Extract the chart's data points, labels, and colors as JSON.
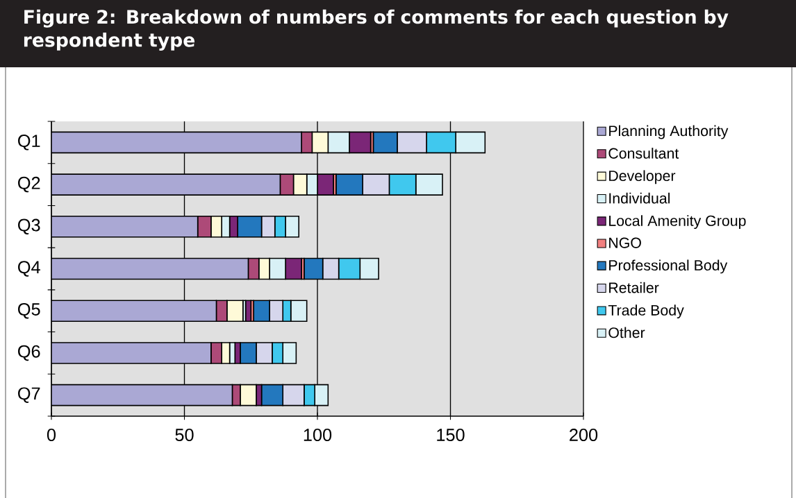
{
  "chart_data": {
    "type": "bar",
    "orientation": "horizontal",
    "stacked": true,
    "title": "Figure 2: Breakdown of numbers of comments for each question by respondent type",
    "categories": [
      "Q1",
      "Q2",
      "Q3",
      "Q4",
      "Q5",
      "Q6",
      "Q7"
    ],
    "series": [
      {
        "name": "Planning Authority",
        "color": "#aaa8d4",
        "values": [
          94,
          86,
          55,
          74,
          62,
          60,
          68
        ]
      },
      {
        "name": "Consultant",
        "color": "#ad4a78",
        "values": [
          4,
          5,
          5,
          4,
          4,
          4,
          3
        ]
      },
      {
        "name": "Developer",
        "color": "#fefad8",
        "values": [
          6,
          5,
          4,
          4,
          6,
          3,
          6
        ]
      },
      {
        "name": "Individual",
        "color": "#d8f1f6",
        "values": [
          8,
          4,
          3,
          6,
          1,
          2,
          0
        ]
      },
      {
        "name": "Local Amenity Group",
        "color": "#7b2677",
        "values": [
          8,
          6,
          3,
          6,
          2,
          2,
          2
        ]
      },
      {
        "name": "NGO",
        "color": "#f28080",
        "values": [
          1,
          1,
          0,
          1,
          1,
          0,
          0
        ]
      },
      {
        "name": "Professional Body",
        "color": "#2378be",
        "values": [
          9,
          10,
          9,
          7,
          6,
          6,
          8
        ]
      },
      {
        "name": "Retailer",
        "color": "#d6d6ec",
        "values": [
          11,
          10,
          5,
          6,
          5,
          6,
          8
        ]
      },
      {
        "name": "Trade Body",
        "color": "#40c8ee",
        "values": [
          11,
          10,
          4,
          8,
          3,
          4,
          4
        ]
      },
      {
        "name": "Other",
        "color": "#d8f1f6",
        "values": [
          11,
          10,
          5,
          7,
          6,
          5,
          5
        ]
      }
    ],
    "xlim": [
      0,
      200
    ],
    "xticks": [
      0,
      50,
      100,
      150,
      200
    ],
    "grid": "x",
    "legend": "right"
  }
}
